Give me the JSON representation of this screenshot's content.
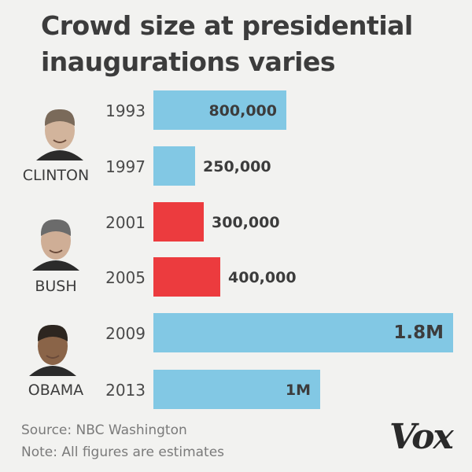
{
  "title": {
    "line1": "Crowd size at presidential",
    "line2": "inaugurations varies"
  },
  "chart_data": {
    "type": "bar",
    "orientation": "horizontal",
    "title": "Crowd size at presidential inaugurations varies",
    "categories": [
      "1993",
      "1997",
      "2001",
      "2005",
      "2009",
      "2013"
    ],
    "values": [
      800000,
      250000,
      300000,
      400000,
      1800000,
      1000000
    ],
    "value_labels": [
      "800,000",
      "250,000",
      "300,000",
      "400,000",
      "1.8M",
      "1M"
    ],
    "groups": [
      {
        "name": "CLINTON",
        "years": [
          "1993",
          "1997"
        ],
        "color": "#82c8e4"
      },
      {
        "name": "BUSH",
        "years": [
          "2001",
          "2005"
        ],
        "color": "#ec3b3e"
      },
      {
        "name": "OBAMA",
        "years": [
          "2009",
          "2013"
        ],
        "color": "#82c8e4"
      }
    ],
    "xlim": [
      0,
      1800000
    ],
    "grid": false,
    "xlabel": "",
    "ylabel": ""
  },
  "footer": {
    "source": "Source: NBC Washington",
    "note": "Note: All figures are estimates"
  },
  "brand": "Vox",
  "colors": {
    "democrat": "#82c8e4",
    "republican": "#ec3b3e",
    "text": "#3c3c3c",
    "muted": "#7a7a7a"
  }
}
